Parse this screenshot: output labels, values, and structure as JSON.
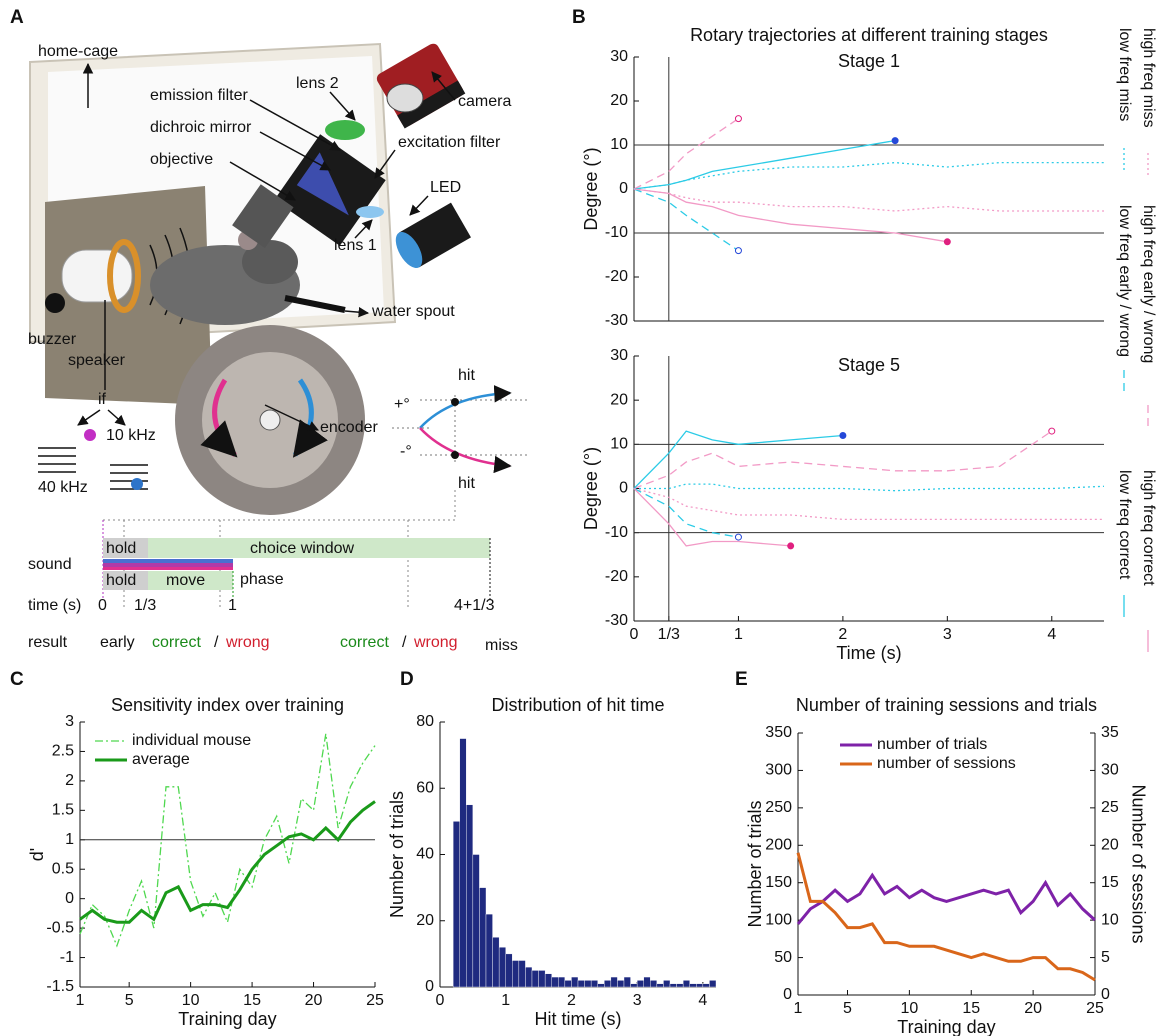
{
  "panel_labels": [
    "A",
    "B",
    "C",
    "D",
    "E"
  ],
  "diagram": {
    "labels": [
      "home-cage",
      "lens 2",
      "camera",
      "emission filter",
      "dichroic mirror",
      "objective",
      "excitation filter",
      "LED",
      "lens 1",
      "water spout",
      "buzzer",
      "speaker",
      "if",
      "10 kHz",
      "40 kHz",
      "encoder",
      "+°",
      "-°",
      "hit",
      "hit",
      "sound",
      "hold",
      "choice window",
      "hold",
      "move",
      "phase",
      "time (s)",
      "0",
      "1/3",
      "1",
      "4+1/3",
      "result",
      "early",
      "correct",
      "/",
      "wrong",
      "correct",
      "/",
      "wrong",
      "miss"
    ]
  },
  "chart_data": [
    {
      "type": "line",
      "title": "Rotary trajectories at different training stages",
      "subtitle": "Stage 1",
      "ylabel": "Degree (°)",
      "x": [
        0,
        0.3333,
        0.5,
        0.75,
        1,
        1.5,
        2,
        2.5,
        3,
        3.5,
        4,
        4.5
      ],
      "xlim": [
        0,
        4.5
      ],
      "ylim": [
        -30,
        30
      ],
      "yticks": [
        -30,
        -20,
        -10,
        0,
        10,
        20,
        30
      ],
      "hlines": [
        -10,
        10
      ],
      "vline": 0.3333,
      "series": [
        {
          "name": "low freq miss",
          "color": "#2ccbe6",
          "line_style": "dotted",
          "values": [
            0,
            1,
            2,
            3,
            4,
            5,
            5,
            6,
            5,
            6,
            6,
            6
          ]
        },
        {
          "name": "high freq miss",
          "color": "#f29ac6",
          "line_style": "dotted",
          "values": [
            0,
            -1,
            -2,
            -3,
            -3,
            -4,
            -4,
            -5,
            -4,
            -5,
            -5,
            -5
          ]
        },
        {
          "name": "low freq early / wrong",
          "color": "#2ccbe6",
          "line_style": "dashed",
          "marker": "open",
          "values": [
            0,
            -3,
            -6,
            -10,
            -14,
            null,
            null,
            null,
            null,
            null,
            null,
            null
          ]
        },
        {
          "name": "high freq early / wrong",
          "color": "#f29ac6",
          "line_style": "dashed",
          "marker": "open",
          "values": [
            0,
            4,
            8,
            12,
            16,
            null,
            null,
            null,
            null,
            null,
            null,
            null
          ]
        },
        {
          "name": "low freq correct",
          "color": "#2ccbe6",
          "line_style": "solid",
          "marker": "filled",
          "values": [
            0,
            1,
            2,
            4,
            5,
            7,
            9,
            11,
            null,
            null,
            null,
            null
          ]
        },
        {
          "name": "high freq correct",
          "color": "#f29ac6",
          "line_style": "solid",
          "marker": "filled",
          "values": [
            0,
            -1,
            -3,
            -4,
            -6,
            -8,
            -9,
            -10,
            -12,
            null,
            null,
            null
          ]
        }
      ]
    },
    {
      "type": "line",
      "subtitle": "Stage 5",
      "xlabel": "Time (s)",
      "ylabel": "Degree (°)",
      "x": [
        0,
        0.3333,
        0.5,
        0.75,
        1,
        1.5,
        2,
        2.5,
        3,
        3.5,
        4,
        4.5
      ],
      "xlim": [
        0,
        4.5
      ],
      "ylim": [
        -30,
        30
      ],
      "yticks": [
        -30,
        -20,
        -10,
        0,
        10,
        20,
        30
      ],
      "xticks": [
        0,
        {
          "value": 0.3333,
          "label": "1/3"
        },
        1,
        2,
        3,
        4
      ],
      "hlines": [
        -10,
        10
      ],
      "vline": 0.3333,
      "series": [
        {
          "color": "#2ccbe6",
          "line_style": "dotted",
          "values": [
            0,
            0,
            1,
            1,
            0,
            0,
            0,
            -0.5,
            0,
            0,
            0,
            0.5
          ]
        },
        {
          "color": "#f29ac6",
          "line_style": "dotted",
          "values": [
            0,
            -2,
            -4,
            -5,
            -6,
            -6,
            -7,
            -7,
            -7,
            -7,
            -7,
            -7
          ]
        },
        {
          "color": "#2ccbe6",
          "line_style": "dashed",
          "marker": "open",
          "values": [
            0,
            -4,
            -8,
            -10,
            -11,
            null,
            null,
            null,
            null,
            null,
            null,
            null
          ]
        },
        {
          "color": "#f29ac6",
          "line_style": "dashed",
          "marker": "open",
          "values": [
            0,
            3,
            6,
            8,
            5,
            6,
            5,
            4,
            4,
            5,
            13,
            null
          ]
        },
        {
          "color": "#2ccbe6",
          "line_style": "solid",
          "marker": "filled",
          "values": [
            0,
            8,
            13,
            11,
            10,
            11,
            12,
            null,
            null,
            null,
            null,
            null
          ]
        },
        {
          "color": "#f29ac6",
          "line_style": "solid",
          "marker": "filled",
          "values": [
            0,
            -8,
            -13,
            -12,
            -12,
            -13,
            null,
            null,
            null,
            null,
            null,
            null
          ]
        }
      ]
    },
    {
      "type": "line",
      "title": "Sensitivity index over training",
      "xlabel": "Training day",
      "ylabel": "d'",
      "x": [
        1,
        2,
        3,
        4,
        5,
        6,
        7,
        8,
        9,
        10,
        11,
        12,
        13,
        14,
        15,
        16,
        17,
        18,
        19,
        20,
        21,
        22,
        23,
        24,
        25
      ],
      "xlim": [
        1,
        25
      ],
      "xticks": [
        1,
        5,
        10,
        15,
        20,
        25
      ],
      "ylim": [
        -1.5,
        3
      ],
      "yticks": [
        -1.5,
        -1,
        -0.5,
        0,
        0.5,
        1,
        1.5,
        2,
        2.5,
        3
      ],
      "hlines": [
        1
      ],
      "series": [
        {
          "name": "individual mouse",
          "color": "#4fd84f",
          "line_style": "dash-dot",
          "values": [
            -0.6,
            -0.1,
            -0.3,
            -0.8,
            -0.2,
            0.3,
            -0.5,
            1.9,
            1.9,
            0.3,
            -0.3,
            0.1,
            -0.4,
            0.5,
            0.2,
            1,
            1.4,
            0.6,
            1.7,
            1.5,
            2.8,
            1.2,
            1.9,
            2.3,
            2.6
          ]
        },
        {
          "name": "average",
          "color": "#1a9a1a",
          "line_style": "solid",
          "values": [
            -0.35,
            -0.2,
            -0.35,
            -0.4,
            -0.4,
            -0.2,
            -0.35,
            0.1,
            0.2,
            -0.2,
            -0.1,
            -0.1,
            -0.15,
            0.15,
            0.5,
            0.75,
            0.9,
            1.05,
            1.1,
            1,
            1.2,
            1,
            1.3,
            1.5,
            1.65
          ]
        }
      ]
    },
    {
      "type": "histogram",
      "title": "Distribution of hit time",
      "xlabel": "Hit time (s)",
      "ylabel": "Number of trials",
      "color": "#1f2a80",
      "bins": [
        0.2,
        0.3,
        0.4,
        0.5,
        0.6,
        0.7,
        0.8,
        0.9,
        1,
        1.1,
        1.2,
        1.3,
        1.4,
        1.5,
        1.6,
        1.7,
        1.8,
        1.9,
        2,
        2.1,
        2.2,
        2.3,
        2.4,
        2.5,
        2.6,
        2.7,
        2.8,
        2.9,
        3,
        3.1,
        3.2,
        3.3,
        3.4,
        3.5,
        3.6,
        3.7,
        3.8,
        3.9,
        4,
        4.1,
        4.2
      ],
      "values": [
        50,
        75,
        55,
        40,
        30,
        22,
        15,
        12,
        10,
        8,
        8,
        6,
        5,
        5,
        4,
        3,
        3,
        2,
        3,
        2,
        2,
        2,
        1,
        2,
        3,
        2,
        3,
        1,
        2,
        3,
        2,
        1,
        2,
        1,
        1,
        2,
        1,
        1,
        1,
        2
      ],
      "xlim": [
        0,
        4.2
      ],
      "xticks": [
        0,
        1,
        2,
        3,
        4
      ],
      "ylim": [
        0,
        80
      ],
      "yticks": [
        0,
        20,
        40,
        60,
        80
      ]
    },
    {
      "type": "line",
      "title": "Number of training sessions and trials",
      "xlabel": "Training day",
      "ylabel": "Number of trials",
      "y2label": "Number of sessions",
      "x": [
        1,
        2,
        3,
        4,
        5,
        6,
        7,
        8,
        9,
        10,
        11,
        12,
        13,
        14,
        15,
        16,
        17,
        18,
        19,
        20,
        21,
        22,
        23,
        24,
        25
      ],
      "xlim": [
        1,
        25
      ],
      "xticks": [
        1,
        5,
        10,
        15,
        20,
        25
      ],
      "ylim": [
        0,
        350
      ],
      "yticks": [
        0,
        50,
        100,
        150,
        200,
        250,
        300,
        350
      ],
      "y2lim": [
        0,
        35
      ],
      "y2ticks": [
        0,
        5,
        10,
        15,
        20,
        25,
        30,
        35
      ],
      "series": [
        {
          "name": "number of trials",
          "color": "#7e22a8",
          "line_style": "solid",
          "values": [
            95,
            115,
            125,
            140,
            125,
            135,
            160,
            135,
            145,
            130,
            140,
            130,
            125,
            130,
            135,
            140,
            135,
            140,
            110,
            125,
            150,
            120,
            135,
            115,
            100
          ]
        },
        {
          "name": "number of sessions",
          "color": "#d9661a",
          "line_style": "solid",
          "axis": "y2",
          "values": [
            19,
            12.5,
            12.5,
            11,
            9,
            9,
            9.5,
            7,
            7,
            6.5,
            6.5,
            6.5,
            6,
            5.5,
            5,
            5.5,
            5,
            4.5,
            4.5,
            5,
            5,
            3.5,
            3.5,
            3,
            2
          ]
        }
      ]
    }
  ]
}
